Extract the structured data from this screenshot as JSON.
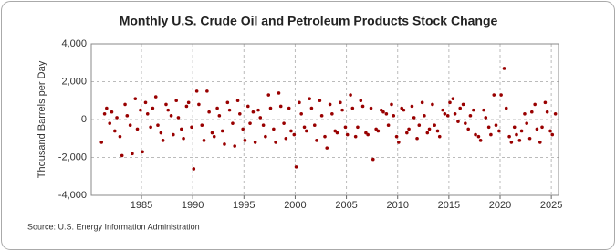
{
  "chart_data": {
    "type": "scatter",
    "title": "Monthly U.S. Crude Oil and Petroleum Products Stock Change",
    "y_label": "Thousand Barrels per Day",
    "source": "Source: U.S. Energy Information Administration",
    "color": "#990000",
    "grid": true,
    "xlim": [
      1980.1,
      2025.7
    ],
    "xticks": [
      1985,
      1990,
      1995,
      2000,
      2005,
      2010,
      2015,
      2020,
      2025
    ],
    "ylim": [
      -4000,
      4000
    ],
    "yticks": [
      {
        "value": 4000,
        "label": "4,000"
      },
      {
        "value": 2000,
        "label": "2,000"
      },
      0,
      {
        "value": -2000,
        "label": "-2,000"
      },
      {
        "value": -4000,
        "label": "-4,000"
      }
    ],
    "series": [
      {
        "name": "Stock Change",
        "x": [
          1981.1,
          1981.4,
          1981.6,
          1981.9,
          1982.1,
          1982.4,
          1982.6,
          1982.9,
          1983.1,
          1983.4,
          1983.6,
          1983.9,
          1984.1,
          1984.4,
          1984.6,
          1984.9,
          1985.1,
          1985.4,
          1985.6,
          1985.9,
          1986.1,
          1986.4,
          1986.6,
          1986.9,
          1987.1,
          1987.4,
          1987.6,
          1987.9,
          1988.1,
          1988.4,
          1988.6,
          1988.9,
          1989.1,
          1989.4,
          1989.6,
          1989.9,
          1990.1,
          1990.4,
          1990.6,
          1990.9,
          1991.1,
          1991.4,
          1991.6,
          1991.9,
          1992.1,
          1992.4,
          1992.6,
          1992.9,
          1993.1,
          1993.4,
          1993.6,
          1993.9,
          1994.1,
          1994.4,
          1994.6,
          1994.9,
          1995.1,
          1995.4,
          1995.6,
          1995.9,
          1996.1,
          1996.4,
          1996.6,
          1996.9,
          1997.1,
          1997.4,
          1997.6,
          1997.9,
          1998.1,
          1998.4,
          1998.6,
          1998.9,
          1999.1,
          1999.4,
          1999.6,
          1999.9,
          2000.1,
          2000.4,
          2000.6,
          2000.9,
          2001.1,
          2001.4,
          2001.6,
          2001.9,
          2002.1,
          2002.4,
          2002.6,
          2002.9,
          2003.1,
          2003.4,
          2003.6,
          2003.9,
          2004.1,
          2004.4,
          2004.6,
          2004.9,
          2005.1,
          2005.4,
          2005.6,
          2005.9,
          2006.1,
          2006.4,
          2006.6,
          2006.9,
          2007.1,
          2007.4,
          2007.6,
          2007.9,
          2008.1,
          2008.4,
          2008.6,
          2008.9,
          2009.1,
          2009.4,
          2009.6,
          2009.9,
          2010.1,
          2010.4,
          2010.6,
          2010.9,
          2011.1,
          2011.4,
          2011.6,
          2011.9,
          2012.1,
          2012.4,
          2012.6,
          2012.9,
          2013.1,
          2013.4,
          2013.6,
          2013.9,
          2014.1,
          2014.4,
          2014.6,
          2014.9,
          2015.1,
          2015.4,
          2015.6,
          2015.9,
          2016.1,
          2016.4,
          2016.6,
          2016.9,
          2017.1,
          2017.4,
          2017.6,
          2017.9,
          2018.1,
          2018.4,
          2018.6,
          2018.9,
          2019.1,
          2019.4,
          2019.6,
          2019.9,
          2020.1,
          2020.4,
          2020.6,
          2020.9,
          2021.1,
          2021.4,
          2021.6,
          2021.9,
          2022.1,
          2022.4,
          2022.6,
          2022.9,
          2023.1,
          2023.4,
          2023.6,
          2023.9,
          2024.1,
          2024.4,
          2024.6,
          2024.9,
          2025.1,
          2025.4
        ],
        "values": [
          -1200,
          300,
          600,
          -200,
          400,
          -600,
          100,
          -900,
          -1900,
          800,
          200,
          -300,
          -1800,
          1100,
          -500,
          500,
          -1700,
          900,
          300,
          -400,
          600,
          1200,
          -300,
          -700,
          -1100,
          800,
          500,
          200,
          -800,
          1000,
          100,
          -500,
          -1000,
          700,
          900,
          -400,
          -2600,
          1500,
          800,
          -300,
          -1100,
          1500,
          400,
          -700,
          -900,
          600,
          200,
          -600,
          -1300,
          900,
          500,
          -200,
          -1400,
          1000,
          300,
          -500,
          -1100,
          700,
          -200,
          400,
          -1200,
          500,
          100,
          -300,
          -900,
          1300,
          600,
          -500,
          -1200,
          1400,
          700,
          -200,
          -1000,
          600,
          -600,
          -800,
          -2500,
          900,
          300,
          -400,
          -600,
          1100,
          600,
          -300,
          -1100,
          1000,
          200,
          -900,
          -1500,
          800,
          300,
          -600,
          -700,
          900,
          500,
          -400,
          -800,
          1300,
          600,
          -900,
          -400,
          1000,
          700,
          -700,
          -800,
          600,
          -2100,
          -500,
          -600,
          500,
          400,
          300,
          -300,
          800,
          200,
          -900,
          -1200,
          600,
          500,
          -700,
          -500,
          700,
          100,
          -1000,
          -300,
          900,
          200,
          -700,
          -500,
          800,
          -300,
          -600,
          -900,
          500,
          300,
          200,
          900,
          1100,
          300,
          -100,
          600,
          800,
          -200,
          -500,
          200,
          500,
          -800,
          -900,
          -1100,
          500,
          100,
          -400,
          -800,
          1300,
          -300,
          -600,
          1300,
          2700,
          600,
          -900,
          -1200,
          -400,
          -800,
          -1100,
          -600,
          300,
          -200,
          -1000,
          400,
          800,
          -500,
          -1200,
          -400,
          900,
          400,
          -600,
          -800,
          300
        ]
      }
    ]
  }
}
